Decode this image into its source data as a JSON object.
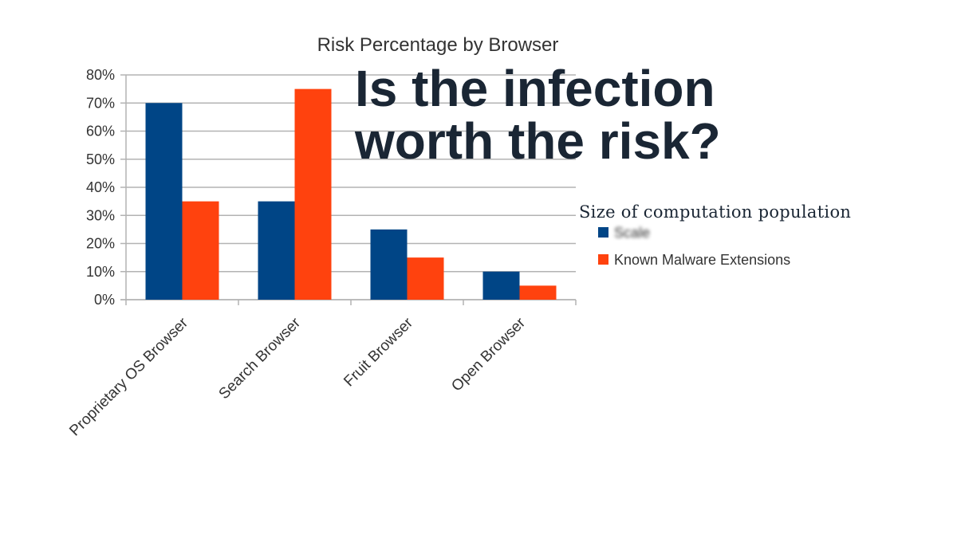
{
  "headline": {
    "line1": "Is the infection",
    "line2": "worth the risk?"
  },
  "overlay_caption": "Size of computation population",
  "chart_data": {
    "type": "bar",
    "title": "Risk Percentage by Browser",
    "categories": [
      "Proprietary OS Browser",
      "Search Browser",
      "Fruit Browser",
      "Open Browser"
    ],
    "series": [
      {
        "name": "Scale",
        "values": [
          70,
          35,
          25,
          10
        ],
        "color": "#004586"
      },
      {
        "name": "Known Malware Extensions",
        "values": [
          35,
          75,
          15,
          5
        ],
        "color": "#ff420e"
      }
    ],
    "ylim": [
      0,
      80
    ],
    "yticks": [
      "0%",
      "10%",
      "20%",
      "30%",
      "40%",
      "50%",
      "60%",
      "70%",
      "80%"
    ],
    "grid": true,
    "legend": "right"
  }
}
